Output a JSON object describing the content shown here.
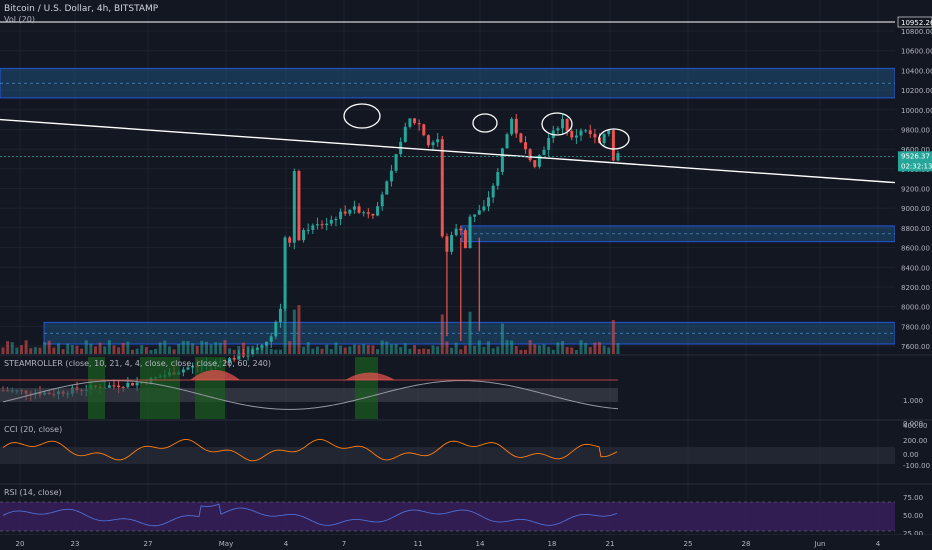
{
  "header": {
    "symbol": "Bitcoin / U.S. Dollar, 4h, BITSTAMP",
    "volume_label": "Vol (20)"
  },
  "indicators": {
    "steamroller": "STEAMROLLER (close, 10, 21, 4, 4, close, close, close, 20, 60, 240)",
    "cci": "CCI (20, close)",
    "rsi": "RSI (14, close)"
  },
  "price_tags": {
    "top": "10952.26",
    "current": "9526.37",
    "countdown": "02:32:13"
  },
  "colors": {
    "background": "#131722",
    "up": "#26a69a",
    "down": "#ef5350",
    "zone": "#1e5a8e",
    "cci_line": "#ff7f0e",
    "rsi_line": "#4c6fd6",
    "rsi_band": "#3a1f5e"
  },
  "chart_data": {
    "type": "candlestick",
    "instrument": "Bitcoin / U.S. Dollar",
    "interval": "4h",
    "exchange": "BITSTAMP",
    "price_axis_ticks": [
      7600,
      7800,
      8000,
      8200,
      8400,
      8600,
      8800,
      9000,
      9200,
      9400,
      9600,
      9800,
      10000,
      10200,
      10400,
      10600,
      10800
    ],
    "price_ylim": [
      7500,
      11000
    ],
    "x_ticks": [
      "20",
      "23",
      "27",
      "May",
      "4",
      "7",
      "11",
      "14",
      "18",
      "21",
      "25",
      "28",
      "Jun",
      "4"
    ],
    "horizontal_line": 10952.26,
    "last_price": 9526.37,
    "support_resistance_zones": [
      {
        "low": 10120,
        "high": 10420
      },
      {
        "low": 8660,
        "high": 8820
      },
      {
        "low": 7620,
        "high": 7840
      }
    ],
    "trendline": {
      "from_price": 9900,
      "to_price": 9260
    },
    "price_path": [
      [
        0,
        7150
      ],
      [
        10,
        7120
      ],
      [
        20,
        7180
      ],
      [
        30,
        7230
      ],
      [
        40,
        7380
      ],
      [
        45,
        7420
      ],
      [
        50,
        7480
      ],
      [
        55,
        7560
      ],
      [
        58,
        7700
      ],
      [
        60,
        8000
      ],
      [
        61,
        8700
      ],
      [
        62,
        8650
      ],
      [
        63,
        9350
      ],
      [
        64,
        8700
      ],
      [
        66,
        8800
      ],
      [
        70,
        8850
      ],
      [
        75,
        9000
      ],
      [
        80,
        8950
      ],
      [
        84,
        9350
      ],
      [
        86,
        9700
      ],
      [
        88,
        9900
      ],
      [
        90,
        9850
      ],
      [
        92,
        9650
      ],
      [
        94,
        9700
      ],
      [
        95,
        8700
      ],
      [
        96,
        8550
      ],
      [
        97,
        8750
      ],
      [
        99,
        8800
      ],
      [
        100,
        8600
      ],
      [
        101,
        8900
      ],
      [
        104,
        9000
      ],
      [
        107,
        9350
      ],
      [
        108,
        9600
      ],
      [
        110,
        9900
      ],
      [
        112,
        9650
      ],
      [
        115,
        9450
      ],
      [
        118,
        9700
      ],
      [
        121,
        9900
      ],
      [
        123,
        9700
      ],
      [
        125,
        9800
      ],
      [
        127,
        9750
      ],
      [
        129,
        9650
      ],
      [
        131,
        9800
      ],
      [
        132,
        9500
      ],
      [
        133,
        9560
      ]
    ],
    "total_bars": 134,
    "steamroller_ticks": [
      1.0,
      0.0
    ],
    "cci_ticks": [
      400.0,
      200.0,
      0.0,
      -100.0
    ],
    "rsi_ticks": [
      75.0,
      50.0,
      25.0
    ]
  }
}
